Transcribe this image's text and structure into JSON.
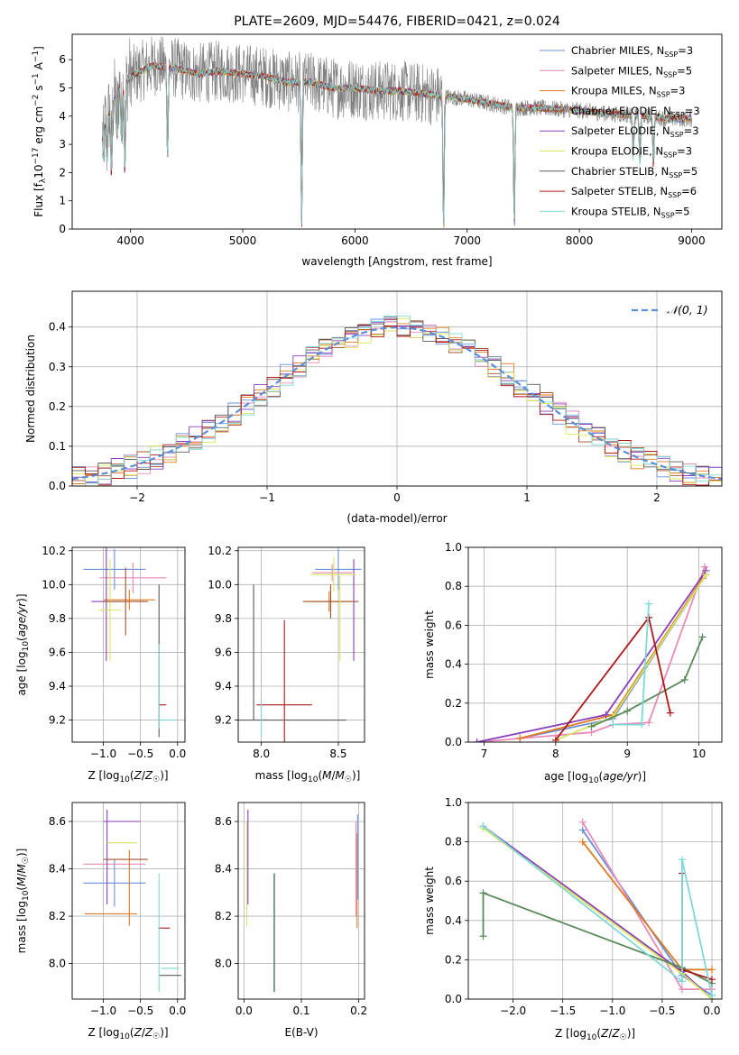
{
  "colors": {
    "grid": "#b0b0b0",
    "fit_gray": "#808080",
    "normal": "#5b8fd9",
    "miles_chabrier": "#6a8fd8",
    "miles_salpeter": "#e98ab8",
    "miles_kroupa": "#e07b20",
    "elodie_chabrier": "#a0522d",
    "elodie_salpeter": "#8a3fbf",
    "elodie_kroupa": "#d8e65a",
    "stelib_chabrier": "#5a5a5a",
    "stelib_salpeter": "#b01818",
    "stelib_kroupa": "#7fd8d8",
    "weights_green": "#5b8a5b"
  },
  "chart_data": [
    {
      "type": "line",
      "title": "PLATE=2609, MJD=54476, FIBERID=0421, z=0.024",
      "xlabel": "wavelength [Angstrom, rest frame]",
      "ylabel": "Flux [f_λ10^-17 erg cm^-2 s^-1 A^-1]",
      "xlim": [
        3480,
        9270
      ],
      "ylim": [
        0,
        6.9
      ],
      "xticks": [
        "4000",
        "5000",
        "6000",
        "7000",
        "8000",
        "9000"
      ],
      "yticks": [
        "0",
        "1",
        "2",
        "3",
        "4",
        "5",
        "6"
      ],
      "grid": false,
      "legend_position": "top-right",
      "continuum": {
        "x": [
          3750,
          3900,
          4000,
          4100,
          4200,
          4400,
          4600,
          4800,
          5000,
          5200,
          5400,
          5600,
          5800,
          6000,
          6200,
          6400,
          6600,
          6800,
          7000,
          7200,
          7400,
          7600,
          7800,
          8000,
          8200,
          8400,
          8600,
          8800,
          9000
        ],
        "y": [
          3.5,
          5.0,
          5.4,
          5.6,
          5.8,
          5.7,
          5.5,
          5.6,
          5.5,
          5.4,
          5.2,
          5.2,
          5.0,
          5.0,
          4.9,
          4.9,
          4.8,
          4.7,
          4.6,
          4.45,
          4.3,
          4.3,
          4.25,
          4.2,
          4.1,
          4.05,
          4.0,
          3.9,
          3.9
        ]
      },
      "absorption_features": [
        {
          "x": 3760,
          "depth": 1.2
        },
        {
          "x": 3790,
          "depth": 1.5
        },
        {
          "x": 3830,
          "depth": 2.4
        },
        {
          "x": 3880,
          "depth": 1.6
        },
        {
          "x": 3920,
          "depth": 2.1
        },
        {
          "x": 3950,
          "depth": 3.3
        },
        {
          "x": 4330,
          "depth": 3.3
        },
        {
          "x": 5525,
          "depth": 5.1
        },
        {
          "x": 6790,
          "depth": 4.8
        },
        {
          "x": 7420,
          "depth": 4.3
        },
        {
          "x": 8480,
          "depth": 1.6
        },
        {
          "x": 8540,
          "depth": 1.8
        },
        {
          "x": 8660,
          "depth": 1.8
        }
      ],
      "series": [
        {
          "name": "Chabrier MILES, N_SSP=3",
          "color": "#6a8fd8"
        },
        {
          "name": "Salpeter MILES, N_SSP=5",
          "color": "#e98ab8"
        },
        {
          "name": "Kroupa MILES, N_SSP=3",
          "color": "#e07b20"
        },
        {
          "name": "Chabrier ELODIE, N_SSP=3",
          "color": "#a0522d"
        },
        {
          "name": "Salpeter ELODIE, N_SSP=3",
          "color": "#8a3fbf"
        },
        {
          "name": "Kroupa ELODIE, N_SSP=3",
          "color": "#d8e65a"
        },
        {
          "name": "Chabrier STELIB, N_SSP=5",
          "color": "#5a5a5a"
        },
        {
          "name": "Salpeter STELIB, N_SSP=6",
          "color": "#b01818"
        },
        {
          "name": "Kroupa STELIB, N_SSP=5",
          "color": "#7fd8d8"
        }
      ]
    },
    {
      "type": "line",
      "title": "",
      "xlabel": "(data-model)/error",
      "ylabel": "Normed distribution",
      "xlim": [
        -2.5,
        2.5
      ],
      "ylim": [
        0,
        0.49
      ],
      "xticks": [
        "−2",
        "−1",
        "0",
        "1",
        "2"
      ],
      "yticks": [
        "0.0",
        "0.1",
        "0.2",
        "0.3",
        "0.4"
      ],
      "grid": true,
      "legend_position": "top-right",
      "legend": "N(0,1)",
      "normal_curve": {
        "mean": 0,
        "sigma": 1
      },
      "bin_width": 0.1
    },
    {
      "type": "scatter",
      "title": "",
      "xlabel": "Z [log10(Z/Z☉)]",
      "ylabel": "age [log10(age/yr)]",
      "xlim": [
        -1.42,
        0.1
      ],
      "ylim": [
        9.07,
        10.22
      ],
      "xticks": [
        "−1.0",
        "−0.5",
        "0.0"
      ],
      "yticks": [
        "9.2",
        "9.4",
        "9.6",
        "9.8",
        "10.0",
        "10.2"
      ],
      "grid": true,
      "points": [
        {
          "series": "Chabrier MILES",
          "x": -0.85,
          "y": 10.09,
          "xerr": 0.42,
          "yerr": 0.12
        },
        {
          "series": "Salpeter MILES",
          "x": -0.6,
          "y": 10.04,
          "xerr": 0.45,
          "yerr": 0.09
        },
        {
          "series": "Kroupa MILES",
          "x": -0.65,
          "y": 9.91,
          "xerr": 0.35,
          "yerr": 0.06
        },
        {
          "series": "Salpeter ELODIE",
          "x": -0.96,
          "y": 9.9,
          "xerr": 0.2,
          "yerr": 0.35
        },
        {
          "series": "Kroupa ELODIE",
          "x": -0.91,
          "y": 9.85,
          "xerr": 0.15,
          "yerr": 0.3
        },
        {
          "series": "Chabrier ELODIE",
          "x": -0.7,
          "y": 9.9,
          "xerr": 0.3,
          "yerr": 0.2
        },
        {
          "series": "Chabrier STELIB",
          "x": -0.25,
          "y": 9.55,
          "xerr": 0.0,
          "yerr": 0.45
        },
        {
          "series": "Salpeter STELIB",
          "x": -0.2,
          "y": 9.29,
          "xerr": 0.05,
          "yerr": 0.0
        },
        {
          "series": "Kroupa STELIB",
          "x": -0.15,
          "y": 9.2,
          "xerr": 0.12,
          "yerr": 0.0
        },
        {
          "series": "Kroupa STELIB",
          "x": -0.25,
          "y": 9.4,
          "xerr": 0.0,
          "yerr": 0.25
        }
      ]
    },
    {
      "type": "scatter",
      "title": "",
      "xlabel": "mass [log10(M/M☉)]",
      "ylabel": "",
      "xlim": [
        7.85,
        8.67
      ],
      "ylim": [
        9.07,
        10.22
      ],
      "xticks": [
        "8.0",
        "8.5"
      ],
      "yticks": [
        "9.2",
        "9.4",
        "9.6",
        "9.8",
        "10.0",
        "10.2"
      ],
      "grid": true,
      "points": [
        {
          "series": "Chabrier MILES",
          "x": 8.5,
          "y": 10.09,
          "xerr": 0.15,
          "yerr": 0.12
        },
        {
          "series": "Salpeter MILES",
          "x": 8.46,
          "y": 10.07,
          "xerr": 0.13,
          "yerr": 0.05
        },
        {
          "series": "Kroupa MILES",
          "x": 8.44,
          "y": 9.9,
          "xerr": 0.15,
          "yerr": 0.06
        },
        {
          "series": "Salpeter ELODIE",
          "x": 8.6,
          "y": 9.85,
          "xerr": 0.0,
          "yerr": 0.3
        },
        {
          "series": "Kroupa ELODIE",
          "x": 8.47,
          "y": 10.06,
          "xerr": 0.15,
          "yerr": 0.1
        },
        {
          "series": "Chabrier ELODIE",
          "x": 8.45,
          "y": 9.9,
          "xerr": 0.18,
          "yerr": 0.1
        },
        {
          "series": "Kroupa ELODIE",
          "x": 8.51,
          "y": 9.8,
          "xerr": 0.0,
          "yerr": 0.25
        },
        {
          "series": "Salpeter STELIB",
          "x": 8.15,
          "y": 9.29,
          "xerr": 0.18,
          "yerr": 0.5
        },
        {
          "series": "Chabrier STELIB",
          "x": 7.95,
          "y": 9.6,
          "xerr": 0.0,
          "yerr": 0.4
        },
        {
          "series": "Chabrier STELIB",
          "x": 8.2,
          "y": 9.2,
          "xerr": 0.35,
          "yerr": 0.0
        },
        {
          "series": "Kroupa STELIB",
          "x": 8.0,
          "y": 9.2,
          "xerr": 0.0,
          "yerr": 0.1
        }
      ]
    },
    {
      "type": "line",
      "title": "",
      "xlabel": "age [log10(age/yr)]",
      "ylabel": "mass weight",
      "xlim": [
        6.78,
        10.32
      ],
      "ylim": [
        0,
        1.0
      ],
      "xticks": [
        "7",
        "8",
        "9",
        "10"
      ],
      "yticks": [
        "0.0",
        "0.2",
        "0.4",
        "0.6",
        "0.8",
        "1.0"
      ],
      "grid": true,
      "series": [
        {
          "name": "Chabrier MILES",
          "x": [
            7.5,
            8.8,
            10.1
          ],
          "y": [
            0.02,
            0.12,
            0.86
          ]
        },
        {
          "name": "Salpeter MILES",
          "x": [
            6.9,
            8.5,
            8.8,
            9.3,
            10.08
          ],
          "y": [
            0.0,
            0.05,
            0.09,
            0.1,
            0.9
          ]
        },
        {
          "name": "Kroupa MILES",
          "x": [
            7.5,
            8.8,
            10.05
          ],
          "y": [
            0.02,
            0.14,
            0.84
          ]
        },
        {
          "name": "Salpeter ELODIE",
          "x": [
            6.9,
            8.7,
            10.1
          ],
          "y": [
            0.0,
            0.14,
            0.88
          ]
        },
        {
          "name": "Kroupa ELODIE",
          "x": [
            8.0,
            8.8,
            10.1
          ],
          "y": [
            0.01,
            0.13,
            0.86
          ]
        },
        {
          "name": "Chabrier STELIB",
          "x": [
            8.5,
            9.0,
            9.8,
            10.05
          ],
          "y": [
            0.08,
            0.16,
            0.32,
            0.54
          ]
        },
        {
          "name": "Salpeter STELIB",
          "x": [
            8.0,
            9.3,
            9.6
          ],
          "y": [
            0.01,
            0.64,
            0.15
          ]
        },
        {
          "name": "Kroupa STELIB",
          "x": [
            8.8,
            9.2,
            9.3
          ],
          "y": [
            0.09,
            0.09,
            0.71
          ]
        }
      ]
    },
    {
      "type": "scatter",
      "title": "",
      "xlabel": "Z [log10(Z/Z☉)]",
      "ylabel": "mass [log10(M/M☉)]",
      "xlim": [
        -1.42,
        0.1
      ],
      "ylim": [
        7.85,
        8.68
      ],
      "xticks": [
        "−1.0",
        "−0.5",
        "0.0"
      ],
      "yticks": [
        "8.0",
        "8.2",
        "8.4",
        "8.6"
      ],
      "grid": true,
      "points": [
        {
          "series": "Chabrier MILES",
          "x": -0.85,
          "y": 8.34,
          "xerr": 0.42,
          "yerr": 0.1
        },
        {
          "series": "Salpeter MILES",
          "x": -0.85,
          "y": 8.42,
          "xerr": 0.42,
          "yerr": 0.0
        },
        {
          "series": "Kroupa MILES",
          "x": -0.9,
          "y": 8.21,
          "xerr": 0.35,
          "yerr": 0.0
        },
        {
          "series": "Kroupa MILES",
          "x": -0.65,
          "y": 8.32,
          "xerr": 0.0,
          "yerr": 0.16
        },
        {
          "series": "Salpeter ELODIE",
          "x": -0.75,
          "y": 8.6,
          "xerr": 0.25,
          "yerr": 0.0
        },
        {
          "series": "Salpeter ELODIE",
          "x": -0.95,
          "y": 8.45,
          "xerr": 0.0,
          "yerr": 0.2
        },
        {
          "series": "Kroupa ELODIE",
          "x": -0.75,
          "y": 8.51,
          "xerr": 0.2,
          "yerr": 0.0
        },
        {
          "series": "Chabrier ELODIE",
          "x": -0.7,
          "y": 8.44,
          "xerr": 0.3,
          "yerr": 0.0
        },
        {
          "series": "Salpeter STELIB",
          "x": -0.18,
          "y": 8.15,
          "xerr": 0.08,
          "yerr": 0.0
        },
        {
          "series": "Chabrier STELIB",
          "x": -0.1,
          "y": 7.95,
          "xerr": 0.15,
          "yerr": 0.0
        },
        {
          "series": "Kroupa STELIB",
          "x": -0.1,
          "y": 7.98,
          "xerr": 0.12,
          "yerr": 0.0
        },
        {
          "series": "Kroupa STELIB",
          "x": -0.25,
          "y": 8.13,
          "xerr": 0.0,
          "yerr": 0.25
        }
      ]
    },
    {
      "type": "scatter",
      "title": "",
      "xlabel": "E(B-V)",
      "ylabel": "",
      "xlim": [
        -0.01,
        0.21
      ],
      "ylim": [
        7.85,
        8.68
      ],
      "xticks": [
        "0.0",
        "0.1",
        "0.2"
      ],
      "yticks": [
        "8.0",
        "8.2",
        "8.4",
        "8.6"
      ],
      "grid": true,
      "points": [
        {
          "series": "Kroupa ELODIE",
          "x": 0.005,
          "y": 8.38,
          "xerr": 0.0,
          "yerr": 0.22
        },
        {
          "series": "Salpeter ELODIE",
          "x": 0.007,
          "y": 8.45,
          "xerr": 0.0,
          "yerr": 0.2
        },
        {
          "series": "Kroupa STELIB",
          "x": 0.052,
          "y": 8.13,
          "xerr": 0.0,
          "yerr": 0.25
        },
        {
          "series": "Chabrier STELIB",
          "x": 0.053,
          "y": 8.13,
          "xerr": 0.0,
          "yerr": 0.25
        },
        {
          "series": "Salpeter MILES",
          "x": 0.195,
          "y": 8.4,
          "xerr": 0.0,
          "yerr": 0.2
        },
        {
          "series": "Kroupa MILES",
          "x": 0.197,
          "y": 8.35,
          "xerr": 0.0,
          "yerr": 0.2
        },
        {
          "series": "Chabrier MILES",
          "x": 0.198,
          "y": 8.45,
          "xerr": 0.0,
          "yerr": 0.18
        }
      ]
    },
    {
      "type": "line",
      "title": "",
      "xlabel": "Z [log10(Z/Z☉)]",
      "ylabel": "mass weight",
      "xlim": [
        -2.45,
        0.1
      ],
      "ylim": [
        0,
        1.0
      ],
      "xticks": [
        "−2.0",
        "−1.5",
        "−1.0",
        "−0.5",
        "0.0"
      ],
      "yticks": [
        "0.0",
        "0.2",
        "0.4",
        "0.6",
        "0.8",
        "1.0"
      ],
      "grid": true,
      "series": [
        {
          "name": "Chabrier MILES",
          "x": [
            -1.3,
            -0.3,
            0.0
          ],
          "y": [
            0.86,
            0.12,
            0.02
          ]
        },
        {
          "name": "Salpeter MILES",
          "x": [
            -1.3,
            -0.3,
            0.0
          ],
          "y": [
            0.9,
            0.05,
            0.05
          ]
        },
        {
          "name": "Kroupa MILES",
          "x": [
            -1.3,
            -0.3,
            0.0
          ],
          "y": [
            0.8,
            0.15,
            0.15
          ]
        },
        {
          "name": "Salpeter ELODIE",
          "x": [
            -2.3,
            -0.3,
            0.0
          ],
          "y": [
            0.88,
            0.14,
            0.0
          ]
        },
        {
          "name": "Kroupa ELODIE",
          "x": [
            -2.3,
            -0.3,
            0.0
          ],
          "y": [
            0.87,
            0.13,
            0.0
          ]
        },
        {
          "name": "Chabrier STELIB",
          "x": [
            -2.3,
            -2.3,
            -0.3,
            0.0
          ],
          "y": [
            0.32,
            0.54,
            0.16,
            0.08
          ]
        },
        {
          "name": "Salpeter STELIB",
          "x": [
            -0.3,
            -0.3,
            0.0
          ],
          "y": [
            0.64,
            0.15,
            0.1
          ]
        },
        {
          "name": "Kroupa STELIB",
          "x": [
            -2.3,
            -0.3,
            -0.3,
            0.0
          ],
          "y": [
            0.88,
            0.09,
            0.71,
            0.02
          ]
        }
      ]
    }
  ]
}
